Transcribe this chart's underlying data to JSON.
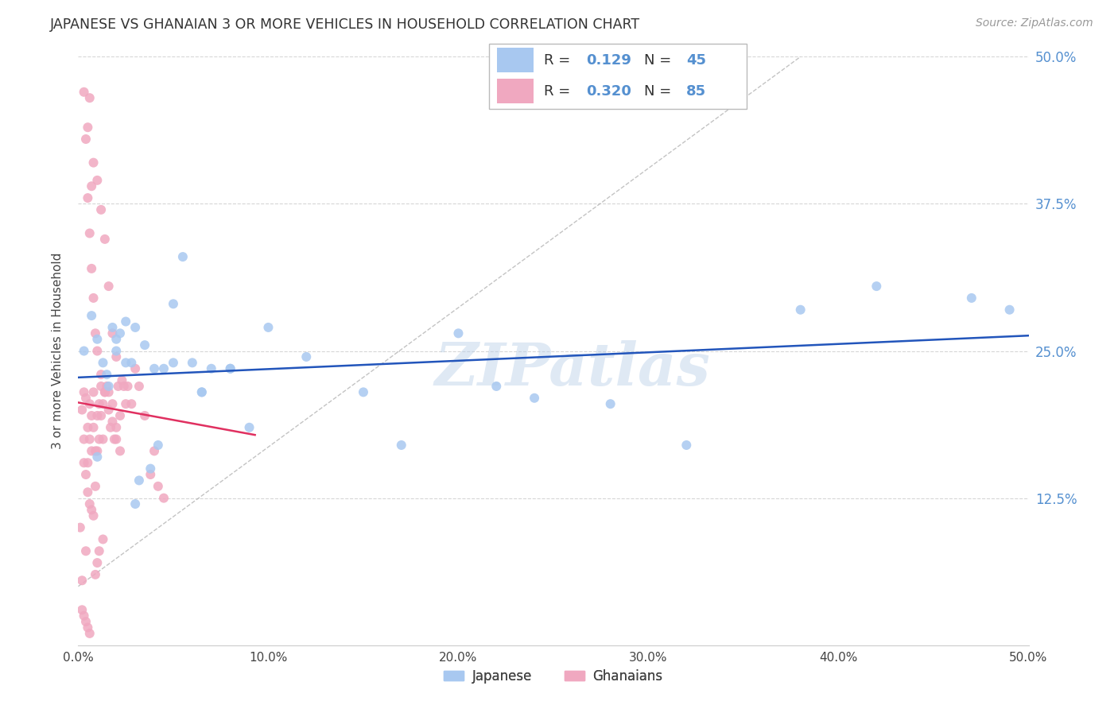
{
  "title": "JAPANESE VS GHANAIAN 3 OR MORE VEHICLES IN HOUSEHOLD CORRELATION CHART",
  "source": "Source: ZipAtlas.com",
  "ylabel": "3 or more Vehicles in Household",
  "xlim": [
    0.0,
    0.5
  ],
  "ylim": [
    0.0,
    0.5
  ],
  "xtick_labels": [
    "0.0%",
    "10.0%",
    "20.0%",
    "30.0%",
    "40.0%",
    "50.0%"
  ],
  "xtick_vals": [
    0.0,
    0.1,
    0.2,
    0.3,
    0.4,
    0.5
  ],
  "ytick_labels": [
    "12.5%",
    "25.0%",
    "37.5%",
    "50.0%"
  ],
  "ytick_vals": [
    0.125,
    0.25,
    0.375,
    0.5
  ],
  "background_color": "#ffffff",
  "grid_color": "#cccccc",
  "watermark": "ZIPatlas",
  "legend_labels": [
    "Japanese",
    "Ghanaians"
  ],
  "japanese_color": "#a8c8f0",
  "ghanaian_color": "#f0a8c0",
  "japanese_line_color": "#2255bb",
  "ghanaian_line_color": "#e03060",
  "tick_color": "#5590d0",
  "japanese_R": 0.129,
  "japanese_N": 45,
  "ghanaian_R": 0.32,
  "ghanaian_N": 85,
  "jp_x": [
    0.003,
    0.007,
    0.01,
    0.013,
    0.016,
    0.018,
    0.02,
    0.022,
    0.025,
    0.028,
    0.03,
    0.032,
    0.035,
    0.038,
    0.042,
    0.045,
    0.05,
    0.055,
    0.06,
    0.065,
    0.07,
    0.08,
    0.09,
    0.1,
    0.015,
    0.02,
    0.025,
    0.03,
    0.04,
    0.05,
    0.065,
    0.08,
    0.12,
    0.15,
    0.17,
    0.2,
    0.22,
    0.24,
    0.28,
    0.32,
    0.38,
    0.42,
    0.47,
    0.49,
    0.01
  ],
  "jp_y": [
    0.25,
    0.28,
    0.26,
    0.24,
    0.22,
    0.27,
    0.25,
    0.265,
    0.275,
    0.24,
    0.12,
    0.14,
    0.255,
    0.15,
    0.17,
    0.235,
    0.29,
    0.33,
    0.24,
    0.215,
    0.235,
    0.235,
    0.185,
    0.27,
    0.23,
    0.26,
    0.24,
    0.27,
    0.235,
    0.24,
    0.215,
    0.235,
    0.245,
    0.215,
    0.17,
    0.265,
    0.22,
    0.21,
    0.205,
    0.17,
    0.285,
    0.305,
    0.295,
    0.285,
    0.16
  ],
  "gh_x": [
    0.001,
    0.002,
    0.002,
    0.003,
    0.003,
    0.004,
    0.004,
    0.005,
    0.005,
    0.006,
    0.006,
    0.007,
    0.007,
    0.008,
    0.008,
    0.009,
    0.009,
    0.01,
    0.01,
    0.011,
    0.011,
    0.012,
    0.012,
    0.013,
    0.013,
    0.014,
    0.015,
    0.016,
    0.017,
    0.018,
    0.019,
    0.02,
    0.021,
    0.022,
    0.023,
    0.024,
    0.025,
    0.026,
    0.028,
    0.03,
    0.032,
    0.035,
    0.038,
    0.04,
    0.042,
    0.045,
    0.005,
    0.006,
    0.007,
    0.008,
    0.01,
    0.012,
    0.014,
    0.016,
    0.018,
    0.02,
    0.003,
    0.004,
    0.005,
    0.006,
    0.007,
    0.008,
    0.009,
    0.01,
    0.012,
    0.014,
    0.016,
    0.018,
    0.02,
    0.022,
    0.003,
    0.004,
    0.005,
    0.006,
    0.007,
    0.008,
    0.009,
    0.01,
    0.011,
    0.013,
    0.002,
    0.003,
    0.004,
    0.005,
    0.006
  ],
  "gh_y": [
    0.1,
    0.055,
    0.2,
    0.175,
    0.215,
    0.08,
    0.21,
    0.185,
    0.155,
    0.205,
    0.175,
    0.195,
    0.165,
    0.215,
    0.185,
    0.165,
    0.135,
    0.195,
    0.165,
    0.205,
    0.175,
    0.195,
    0.22,
    0.205,
    0.175,
    0.215,
    0.22,
    0.215,
    0.185,
    0.205,
    0.175,
    0.185,
    0.22,
    0.195,
    0.225,
    0.22,
    0.205,
    0.22,
    0.205,
    0.235,
    0.22,
    0.195,
    0.145,
    0.165,
    0.135,
    0.125,
    0.44,
    0.465,
    0.39,
    0.41,
    0.395,
    0.37,
    0.345,
    0.305,
    0.265,
    0.245,
    0.47,
    0.43,
    0.38,
    0.35,
    0.32,
    0.295,
    0.265,
    0.25,
    0.23,
    0.215,
    0.2,
    0.19,
    0.175,
    0.165,
    0.155,
    0.145,
    0.13,
    0.12,
    0.115,
    0.11,
    0.06,
    0.07,
    0.08,
    0.09,
    0.03,
    0.025,
    0.02,
    0.015,
    0.01
  ]
}
